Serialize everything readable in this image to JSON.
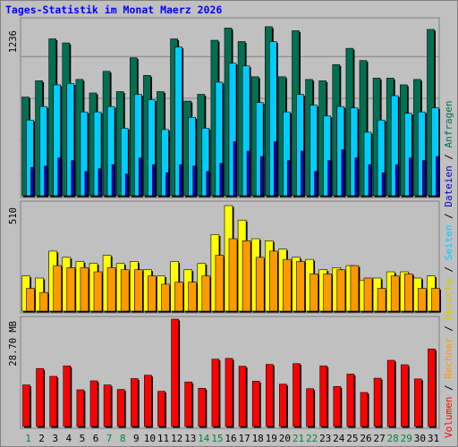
{
  "title": "Tages-Statistik im Monat Maerz 2026",
  "colors": {
    "background": "#c0c0c0",
    "title": "#0000ff",
    "frame": "#808080",
    "gridline": "#808080",
    "anfragen": "#007050",
    "dateien": "#00ccff",
    "seiten": "#0000cc",
    "besuche": "#ffff00",
    "rechner": "#ff9900",
    "volumen": "#ff0000",
    "weekday_label": "#000000",
    "weekend_label": "#008040"
  },
  "legend": {
    "anfragen": "Anfragen",
    "dateien": "Dateien",
    "seiten": "Seiten",
    "besuche": "Besuche",
    "rechner": "Rechner",
    "volumen": "Volumen",
    "separator": "/"
  },
  "chart_data": [
    {
      "type": "bar",
      "panel": "top",
      "y_max_label": "1236",
      "ylim": [
        0,
        1236
      ],
      "categories": [
        "1",
        "2",
        "3",
        "4",
        "5",
        "6",
        "7",
        "8",
        "9",
        "10",
        "11",
        "12",
        "13",
        "14",
        "15",
        "16",
        "17",
        "18",
        "19",
        "20",
        "21",
        "22",
        "23",
        "24",
        "25",
        "26",
        "27",
        "28",
        "29",
        "30",
        "31"
      ],
      "weekend_days": [
        1,
        7,
        8,
        14,
        15,
        21,
        22,
        28,
        29
      ],
      "series": [
        {
          "name": "Anfragen",
          "values": [
            730,
            850,
            1160,
            1130,
            860,
            760,
            920,
            770,
            1020,
            890,
            770,
            1160,
            700,
            750,
            1150,
            1240,
            1140,
            880,
            1250,
            880,
            1220,
            860,
            850,
            970,
            1090,
            1000,
            870,
            870,
            820,
            860,
            1230
          ]
        },
        {
          "name": "Dateien",
          "values": [
            560,
            660,
            820,
            830,
            620,
            620,
            660,
            500,
            750,
            710,
            490,
            1100,
            580,
            500,
            840,
            980,
            960,
            690,
            1140,
            620,
            750,
            670,
            590,
            660,
            650,
            470,
            560,
            740,
            610,
            620,
            650
          ]
        },
        {
          "name": "Seiten",
          "values": [
            210,
            220,
            280,
            260,
            180,
            200,
            230,
            160,
            280,
            230,
            170,
            230,
            220,
            180,
            240,
            400,
            330,
            290,
            400,
            260,
            330,
            180,
            260,
            340,
            280,
            230,
            170,
            230,
            280,
            260,
            290
          ]
        }
      ]
    },
    {
      "type": "bar",
      "panel": "middle",
      "y_max_label": "510",
      "ylim": [
        0,
        510
      ],
      "categories": [
        "1",
        "2",
        "3",
        "4",
        "5",
        "6",
        "7",
        "8",
        "9",
        "10",
        "11",
        "12",
        "13",
        "14",
        "15",
        "16",
        "17",
        "18",
        "19",
        "20",
        "21",
        "22",
        "23",
        "24",
        "25",
        "26",
        "27",
        "28",
        "29",
        "30",
        "31"
      ],
      "series": [
        {
          "name": "Besuche",
          "values": [
            170,
            160,
            290,
            260,
            240,
            230,
            270,
            230,
            240,
            200,
            170,
            240,
            200,
            230,
            370,
            510,
            440,
            350,
            340,
            300,
            260,
            250,
            200,
            210,
            220,
            150,
            160,
            190,
            190,
            160,
            170
          ]
        },
        {
          "name": "Rechner",
          "values": [
            110,
            90,
            220,
            210,
            210,
            190,
            210,
            200,
            200,
            170,
            130,
            140,
            140,
            170,
            270,
            350,
            340,
            260,
            290,
            250,
            240,
            180,
            180,
            200,
            220,
            160,
            110,
            170,
            180,
            110,
            110
          ]
        }
      ]
    },
    {
      "type": "bar",
      "panel": "bottom",
      "y_max_label": "28.70 MB",
      "ylim": [
        0,
        28.7
      ],
      "categories": [
        "1",
        "2",
        "3",
        "4",
        "5",
        "6",
        "7",
        "8",
        "9",
        "10",
        "11",
        "12",
        "13",
        "14",
        "15",
        "16",
        "17",
        "18",
        "19",
        "20",
        "21",
        "22",
        "23",
        "24",
        "25",
        "26",
        "27",
        "28",
        "29",
        "30",
        "31"
      ],
      "series": [
        {
          "name": "Volumen",
          "values": [
            11.1,
            15.5,
            13.4,
            16.2,
            9.8,
            12.2,
            11.1,
            9.9,
            12.8,
            13.7,
            9.4,
            28.7,
            11.9,
            10.2,
            18.0,
            18.2,
            16.1,
            12.1,
            16.6,
            11.3,
            16.8,
            10.1,
            16.2,
            10.7,
            14.0,
            9.1,
            12.9,
            17.7,
            16.5,
            12.7,
            20.7
          ]
        }
      ]
    }
  ]
}
